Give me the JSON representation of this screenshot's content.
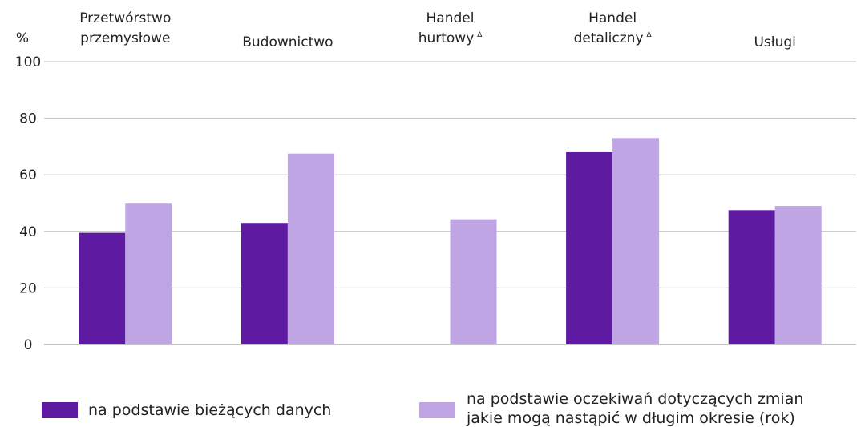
{
  "chart_data": {
    "type": "bar",
    "y_label": "%",
    "categories": [
      [
        "Przetwórstwo",
        "przemysłowe"
      ],
      [
        "Budownictwo"
      ],
      [
        "Handel",
        "hurtowy"
      ],
      [
        "Handel",
        "detaliczny"
      ],
      [
        "Usługi"
      ]
    ],
    "category_notes": [
      null,
      null,
      "∆",
      "∆",
      null
    ],
    "series": [
      {
        "name": "na podstawie bieżących danych",
        "color": "#5e1aa0",
        "values": [
          39.5,
          43,
          null,
          68,
          47.5
        ]
      },
      {
        "name": "na podstawie oczekiwań dotyczących zmian jakie mogą nastąpić w długim okresie (rok)",
        "color": "#bfa5e3",
        "values": [
          49.8,
          67.5,
          44.3,
          73,
          49
        ]
      }
    ],
    "ylim": [
      0,
      100
    ],
    "yticks": [
      0,
      20,
      40,
      60,
      80,
      100
    ],
    "grid": true
  }
}
